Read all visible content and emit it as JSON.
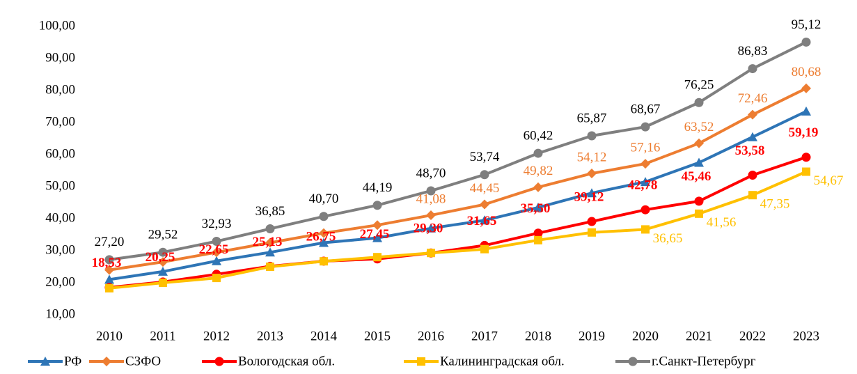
{
  "chart_data": {
    "type": "line",
    "categories": [
      "2010",
      "2011",
      "2012",
      "2013",
      "2014",
      "2015",
      "2016",
      "2017",
      "2018",
      "2019",
      "2020",
      "2021",
      "2022",
      "2023"
    ],
    "ylim": [
      10,
      100
    ],
    "yticks": [
      {
        "value": 10,
        "label": "10,00"
      },
      {
        "value": 20,
        "label": "20,00"
      },
      {
        "value": 30,
        "label": "30,00"
      },
      {
        "value": 40,
        "label": "40,00"
      },
      {
        "value": 50,
        "label": "50,00"
      },
      {
        "value": 60,
        "label": "60,00"
      },
      {
        "value": 70,
        "label": "70,00"
      },
      {
        "value": 80,
        "label": "80,00"
      },
      {
        "value": 90,
        "label": "90,00"
      },
      {
        "value": 100,
        "label": "100,00"
      }
    ],
    "legend": "bottom",
    "series": [
      {
        "name": "РФ",
        "color": "#2e75b6",
        "marker": "triangle",
        "values": [
          21,
          23.5,
          26.8,
          29.5,
          32.5,
          34,
          37,
          39.5,
          43.5,
          48,
          51.5,
          57.5,
          65.5,
          73.5
        ]
      },
      {
        "name": "СЗФО",
        "color": "#ed7d31",
        "marker": "diamond",
        "values": [
          24,
          26.5,
          29.5,
          32.5,
          35.5,
          38,
          41.08,
          44.45,
          49.82,
          54.12,
          57.16,
          63.52,
          72.46,
          80.68
        ],
        "value_labels": [
          null,
          null,
          null,
          null,
          null,
          null,
          "41,08",
          "44,45",
          "49,82",
          "54,12",
          "57,16",
          "63,52",
          "72,46",
          "80,68"
        ]
      },
      {
        "name": "Вологодская обл.",
        "color": "#ff0000",
        "marker": "circle",
        "values": [
          18.53,
          20.25,
          22.65,
          25.13,
          26.75,
          27.45,
          29.3,
          31.65,
          35.5,
          39.12,
          42.78,
          45.46,
          53.58,
          59.19
        ],
        "value_labels": [
          "18,53",
          "20,25",
          "22,65",
          "25,13",
          "26,75",
          "27,45",
          "29,30",
          "31,65",
          "35,50",
          "39,12",
          "42,78",
          "45,46",
          "53,58",
          "59,19"
        ]
      },
      {
        "name": "Калининградская обл.",
        "color": "#ffc000",
        "marker": "square",
        "values": [
          18.3,
          20,
          21.5,
          25,
          26.7,
          28,
          29.3,
          30.5,
          33.3,
          35.7,
          36.65,
          41.56,
          47.35,
          54.67
        ],
        "value_labels": [
          null,
          null,
          null,
          null,
          null,
          null,
          null,
          null,
          null,
          null,
          "36,65",
          "41,56",
          "47,35",
          "54,67"
        ]
      },
      {
        "name": "г.Санкт-Петербург",
        "color": "#7f7f7f",
        "marker": "circle",
        "values": [
          27.2,
          29.52,
          32.93,
          36.85,
          40.7,
          44.19,
          48.7,
          53.74,
          60.42,
          65.87,
          68.67,
          76.25,
          86.83,
          95.12
        ],
        "value_labels": [
          "27,20",
          "29,52",
          "32,93",
          "36,85",
          "40,70",
          "44,19",
          "48,70",
          "53,74",
          "60,42",
          "65,87",
          "68,67",
          "76,25",
          "86,83",
          "95,12"
        ]
      }
    ]
  }
}
